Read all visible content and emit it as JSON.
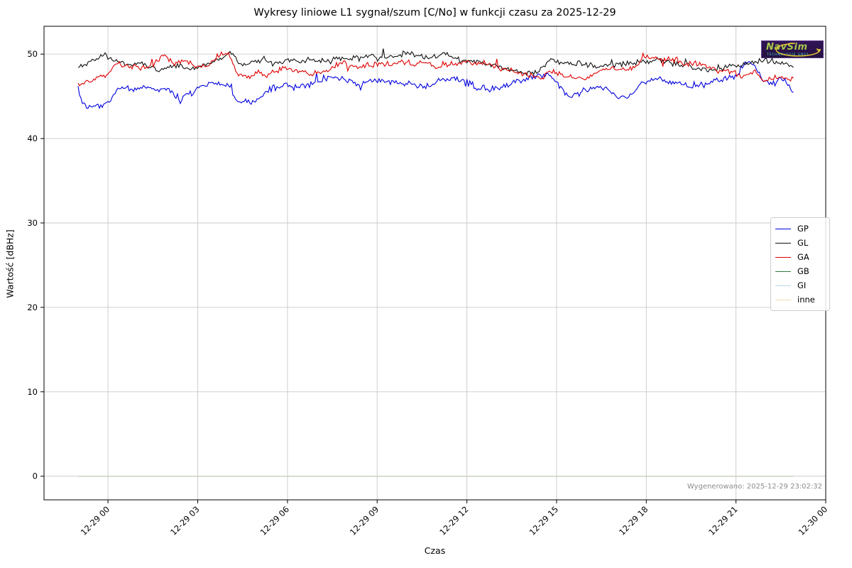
{
  "figure": {
    "generated": "Wygenerowano: 2025-12-29 23:02:32",
    "watermark": {
      "name": "NavSim",
      "subtitle": "TECHNOLOGIE GNSS",
      "bg_color": "#2a1050",
      "text_color": "#a4c84a",
      "swoosh_color": "#e3c435"
    }
  },
  "chart_data": {
    "type": "line",
    "title": "Wykresy liniowe L1 sygnał/szum [C/No] w funkcji czasu za 2025-12-29",
    "xlabel": "Czas",
    "ylabel": "Wartość [dBHz]",
    "grid": true,
    "legend_position": "center right",
    "ylim": [
      -2.8,
      53.3
    ],
    "xlim_hours": [
      -2.14,
      24
    ],
    "y_ticks": [
      0,
      10,
      20,
      30,
      40,
      50
    ],
    "x_tick_hours": [
      0,
      3,
      6,
      9,
      12,
      15,
      18,
      21,
      24
    ],
    "x_tick_labels": [
      "12-29 00",
      "12-29 03",
      "12-29 06",
      "12-29 09",
      "12-29 12",
      "12-29 15",
      "12-29 18",
      "12-29 21",
      "12-30 00"
    ],
    "series": [
      {
        "name": "GP",
        "color": "#0000e0",
        "noise": 0.55,
        "points": [
          [
            -1.0,
            45.9
          ],
          [
            -0.85,
            44.2
          ],
          [
            -0.6,
            43.8
          ],
          [
            -0.3,
            43.9
          ],
          [
            0,
            44.3
          ],
          [
            0.4,
            46.2
          ],
          [
            0.8,
            45.9
          ],
          [
            1.2,
            46.3
          ],
          [
            1.6,
            46.1
          ],
          [
            2.0,
            46.2
          ],
          [
            2.4,
            44.9
          ],
          [
            2.8,
            45.4
          ],
          [
            3.2,
            46.4
          ],
          [
            3.6,
            46.4
          ],
          [
            4.0,
            46.3
          ],
          [
            4.4,
            44.5
          ],
          [
            4.8,
            44.6
          ],
          [
            5.2,
            45.6
          ],
          [
            5.6,
            46.6
          ],
          [
            6.0,
            46.6
          ],
          [
            6.4,
            46.2
          ],
          [
            6.8,
            46.4
          ],
          [
            7.2,
            46.8
          ],
          [
            7.6,
            47.0
          ],
          [
            8.0,
            46.6
          ],
          [
            8.4,
            46.3
          ],
          [
            8.8,
            46.8
          ],
          [
            9.2,
            47.0
          ],
          [
            9.6,
            46.7
          ],
          [
            10.0,
            46.4
          ],
          [
            10.4,
            46.0
          ],
          [
            10.8,
            46.1
          ],
          [
            11.2,
            46.9
          ],
          [
            11.6,
            47.1
          ],
          [
            12.0,
            46.7
          ],
          [
            12.4,
            46.1
          ],
          [
            12.8,
            46.1
          ],
          [
            13.2,
            46.3
          ],
          [
            13.6,
            46.6
          ],
          [
            14.0,
            46.8
          ],
          [
            14.4,
            47.4
          ],
          [
            14.8,
            47.5
          ],
          [
            15.1,
            46.2
          ],
          [
            15.4,
            44.9
          ],
          [
            15.8,
            45.3
          ],
          [
            16.2,
            45.9
          ],
          [
            16.6,
            45.5
          ],
          [
            17.0,
            44.9
          ],
          [
            17.4,
            44.7
          ],
          [
            17.8,
            46.2
          ],
          [
            18.2,
            46.8
          ],
          [
            18.6,
            46.9
          ],
          [
            19.0,
            46.4
          ],
          [
            19.4,
            46.1
          ],
          [
            19.8,
            46.3
          ],
          [
            20.2,
            46.7
          ],
          [
            20.6,
            47.1
          ],
          [
            21.0,
            47.3
          ],
          [
            21.3,
            48.9
          ],
          [
            21.6,
            48.7
          ],
          [
            21.9,
            46.6
          ],
          [
            22.2,
            46.2
          ],
          [
            22.5,
            46.9
          ],
          [
            22.75,
            46.2
          ],
          [
            22.92,
            45.4
          ]
        ]
      },
      {
        "name": "GL",
        "color": "#101010",
        "noise": 0.45,
        "points": [
          [
            -1.0,
            48.6
          ],
          [
            -0.7,
            48.9
          ],
          [
            -0.4,
            49.3
          ],
          [
            -0.1,
            49.8
          ],
          [
            0.2,
            49.1
          ],
          [
            0.6,
            48.7
          ],
          [
            1.0,
            48.8
          ],
          [
            1.4,
            48.6
          ],
          [
            1.8,
            48.5
          ],
          [
            2.2,
            48.7
          ],
          [
            2.6,
            48.5
          ],
          [
            3.0,
            48.4
          ],
          [
            3.4,
            49.0
          ],
          [
            3.8,
            49.7
          ],
          [
            4.1,
            50.0
          ],
          [
            4.4,
            48.9
          ],
          [
            4.8,
            49.3
          ],
          [
            5.2,
            49.5
          ],
          [
            5.6,
            48.8
          ],
          [
            6.0,
            49.2
          ],
          [
            6.4,
            48.9
          ],
          [
            6.8,
            49.1
          ],
          [
            7.2,
            48.9
          ],
          [
            7.6,
            49.0
          ],
          [
            8.0,
            49.2
          ],
          [
            8.4,
            49.4
          ],
          [
            8.8,
            49.8
          ],
          [
            9.2,
            49.3
          ],
          [
            9.6,
            49.5
          ],
          [
            10.0,
            50.1
          ],
          [
            10.4,
            49.5
          ],
          [
            10.8,
            49.4
          ],
          [
            11.2,
            50.2
          ],
          [
            11.6,
            49.6
          ],
          [
            12.0,
            49.3
          ],
          [
            12.4,
            49.1
          ],
          [
            12.8,
            48.7
          ],
          [
            13.2,
            48.4
          ],
          [
            13.6,
            48.1
          ],
          [
            14.0,
            47.9
          ],
          [
            14.4,
            48.1
          ],
          [
            14.8,
            49.4
          ],
          [
            15.2,
            48.9
          ],
          [
            15.6,
            48.8
          ],
          [
            16.0,
            48.7
          ],
          [
            16.4,
            48.4
          ],
          [
            16.8,
            48.6
          ],
          [
            17.2,
            48.8
          ],
          [
            17.6,
            48.9
          ],
          [
            18.0,
            49.0
          ],
          [
            18.4,
            49.1
          ],
          [
            18.8,
            48.9
          ],
          [
            19.2,
            48.6
          ],
          [
            19.6,
            48.3
          ],
          [
            20.0,
            48.1
          ],
          [
            20.4,
            48.2
          ],
          [
            20.8,
            48.4
          ],
          [
            21.2,
            48.6
          ],
          [
            21.6,
            48.7
          ],
          [
            22.0,
            49.2
          ],
          [
            22.4,
            49.0
          ],
          [
            22.7,
            48.8
          ],
          [
            22.92,
            48.7
          ]
        ]
      },
      {
        "name": "GA",
        "color": "#e00000",
        "noise": 0.5,
        "points": [
          [
            -1.0,
            46.6
          ],
          [
            -0.7,
            46.9
          ],
          [
            -0.4,
            47.1
          ],
          [
            -0.1,
            47.4
          ],
          [
            0.3,
            48.7
          ],
          [
            0.7,
            48.4
          ],
          [
            1.1,
            48.3
          ],
          [
            1.5,
            48.4
          ],
          [
            1.9,
            49.7
          ],
          [
            2.2,
            48.6
          ],
          [
            2.6,
            49.0
          ],
          [
            3.0,
            48.5
          ],
          [
            3.3,
            48.3
          ],
          [
            3.7,
            49.5
          ],
          [
            4.0,
            49.9
          ],
          [
            4.3,
            47.4
          ],
          [
            4.7,
            46.9
          ],
          [
            5.0,
            47.5
          ],
          [
            5.3,
            47.1
          ],
          [
            5.7,
            47.8
          ],
          [
            6.1,
            47.7
          ],
          [
            6.5,
            47.9
          ],
          [
            6.9,
            47.7
          ],
          [
            7.3,
            48.1
          ],
          [
            7.7,
            48.7
          ],
          [
            8.1,
            48.9
          ],
          [
            8.5,
            48.5
          ],
          [
            8.9,
            48.5
          ],
          [
            9.3,
            48.9
          ],
          [
            9.7,
            49.0
          ],
          [
            10.1,
            48.9
          ],
          [
            10.5,
            49.1
          ],
          [
            10.9,
            48.8
          ],
          [
            11.3,
            48.8
          ],
          [
            11.7,
            48.9
          ],
          [
            12.1,
            48.9
          ],
          [
            12.5,
            48.6
          ],
          [
            12.9,
            48.3
          ],
          [
            13.3,
            48.1
          ],
          [
            13.7,
            47.7
          ],
          [
            14.1,
            47.2
          ],
          [
            14.5,
            47.1
          ],
          [
            14.9,
            47.9
          ],
          [
            15.3,
            47.2
          ],
          [
            15.7,
            47.0
          ],
          [
            16.1,
            47.1
          ],
          [
            16.5,
            48.3
          ],
          [
            16.9,
            48.7
          ],
          [
            17.3,
            48.4
          ],
          [
            17.7,
            48.6
          ],
          [
            18.0,
            49.8
          ],
          [
            18.3,
            49.5
          ],
          [
            18.7,
            49.1
          ],
          [
            19.0,
            49.4
          ],
          [
            19.3,
            48.7
          ],
          [
            19.7,
            48.9
          ],
          [
            20.1,
            48.4
          ],
          [
            20.5,
            48.0
          ],
          [
            20.9,
            48.1
          ],
          [
            21.2,
            47.1
          ],
          [
            21.6,
            47.9
          ],
          [
            21.9,
            46.7
          ],
          [
            22.2,
            47.1
          ],
          [
            22.5,
            47.3
          ],
          [
            22.75,
            46.9
          ],
          [
            22.92,
            47.2
          ]
        ]
      },
      {
        "name": "GB",
        "color": "#2f7d3f",
        "noise": 0,
        "points": [
          [
            -1.0,
            0
          ],
          [
            22.92,
            0
          ]
        ]
      },
      {
        "name": "GI",
        "color": "#b9d7e8",
        "noise": 0,
        "points": [
          [
            -1.0,
            0
          ],
          [
            22.92,
            0
          ]
        ]
      },
      {
        "name": "inne",
        "color": "#f6dcb2",
        "noise": 0,
        "opacity": 0.55,
        "points": [
          [
            -1.0,
            0
          ],
          [
            22.92,
            0
          ]
        ]
      }
    ]
  }
}
